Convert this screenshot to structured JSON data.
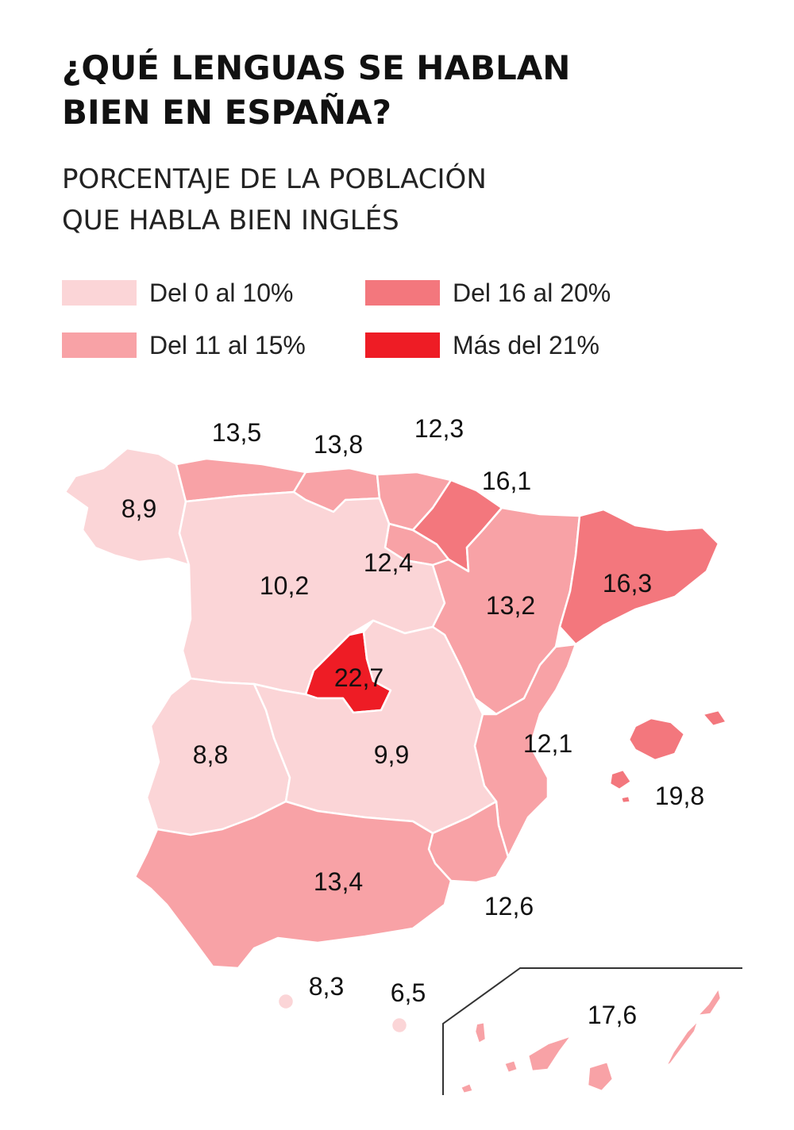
{
  "title": [
    "¿QUÉ LENGUAS SE HABLAN",
    "BIEN EN ESPAÑA?"
  ],
  "subtitle": [
    "PORCENTAJE DE LA POBLACIÓN",
    "QUE HABLA BIEN INGLÉS"
  ],
  "colors": {
    "bin1": "#fbd5d7",
    "bin2": "#f8a2a6",
    "bin3": "#f3777d",
    "bin4": "#ee1c25"
  },
  "legend": [
    {
      "label": "Del 0 al 10%",
      "color": "#fbd5d7"
    },
    {
      "label": "Del 11 al 15%",
      "color": "#f8a2a6"
    },
    {
      "label": "Del 16 al 20%",
      "color": "#f3777d"
    },
    {
      "label": "Más del 21%",
      "color": "#ee1c25"
    }
  ],
  "regions": [
    {
      "name": "Galicia",
      "value": "8,9"
    },
    {
      "name": "Asturias",
      "value": "13,5"
    },
    {
      "name": "Cantabria",
      "value": "13,8"
    },
    {
      "name": "País Vasco",
      "value": "12,3"
    },
    {
      "name": "Navarra",
      "value": "16,1"
    },
    {
      "name": "La Rioja",
      "value": "12,4"
    },
    {
      "name": "Castilla y León",
      "value": "10,2"
    },
    {
      "name": "Aragón",
      "value": "13,2"
    },
    {
      "name": "Cataluña",
      "value": "16,3"
    },
    {
      "name": "Madrid",
      "value": "22,7"
    },
    {
      "name": "Extremadura",
      "value": "8,8"
    },
    {
      "name": "Castilla-La Mancha",
      "value": "9,9"
    },
    {
      "name": "Comunidad Valenciana",
      "value": "12,1"
    },
    {
      "name": "Baleares",
      "value": "19,8"
    },
    {
      "name": "Andalucía",
      "value": "13,4"
    },
    {
      "name": "Murcia",
      "value": "12,6"
    },
    {
      "name": "Ceuta",
      "value": "8,3"
    },
    {
      "name": "Melilla",
      "value": "6,5"
    },
    {
      "name": "Canarias",
      "value": "17,6"
    }
  ]
}
